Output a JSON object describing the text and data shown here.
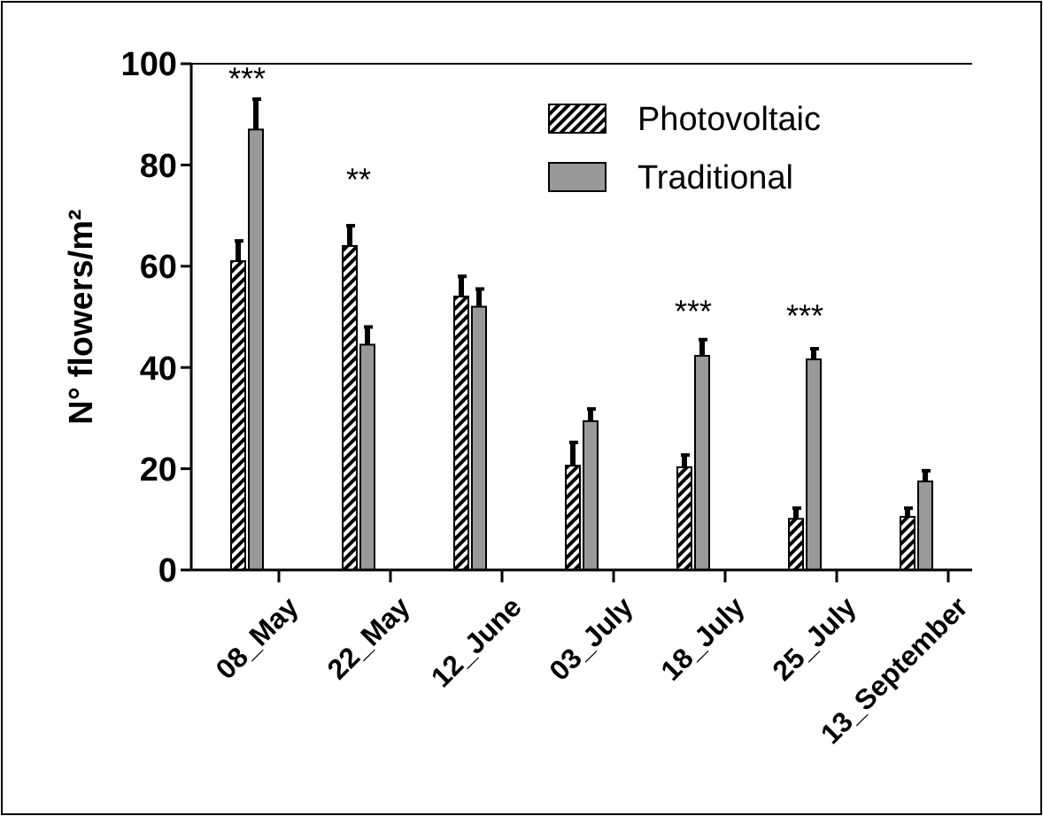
{
  "chart_data": {
    "type": "bar",
    "ylabel": "N° flowers/m²",
    "categories": [
      "08_May",
      "22_May",
      "12_June",
      "03_July",
      "18_July",
      "25_July",
      "13_September"
    ],
    "series": [
      {
        "name": "Photovoltaic",
        "color": "#000000",
        "values": [
          61,
          64,
          54,
          20.6,
          20.3,
          10.1,
          10.5
        ],
        "errors": [
          [
            61,
            65
          ],
          [
            64,
            68
          ],
          [
            54,
            58
          ],
          [
            20.6,
            25.2
          ],
          [
            20.3,
            22.7
          ],
          [
            10.1,
            12.2
          ],
          [
            10.5,
            12.2
          ]
        ]
      },
      {
        "name": "Traditional",
        "color": "#999999",
        "values": [
          87,
          44.5,
          52,
          29.4,
          42.3,
          41.6,
          17.5
        ],
        "errors": [
          [
            87,
            93
          ],
          [
            44.5,
            48
          ],
          [
            52,
            55.5
          ],
          [
            29.4,
            31.8
          ],
          [
            42.3,
            45.5
          ],
          [
            41.6,
            43.7
          ],
          [
            17.5,
            19.6
          ]
        ]
      }
    ],
    "ylim": [
      0,
      100
    ],
    "yticks": [
      0,
      20,
      40,
      60,
      80,
      100
    ],
    "grid": false,
    "legend": "top right",
    "annotations": [
      "***",
      "**",
      "***",
      "***"
    ]
  }
}
